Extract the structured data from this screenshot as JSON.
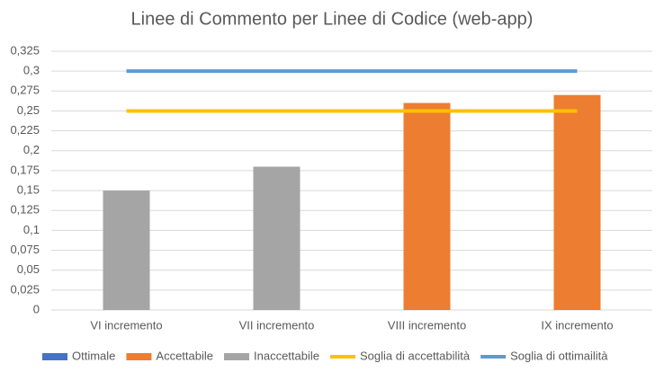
{
  "chart_data": {
    "type": "bar",
    "title": "Linee di Commento per Linee di Codice (web-app)",
    "categories": [
      "VI incremento",
      "VII incremento",
      "VIII incremento",
      "IX incremento"
    ],
    "series": [
      {
        "name": "Ottimale",
        "color": "#4472c4",
        "type": "bar",
        "values": [
          null,
          null,
          null,
          null
        ]
      },
      {
        "name": "Accettabile",
        "color": "#ed7d31",
        "type": "bar",
        "values": [
          null,
          null,
          0.26,
          0.27
        ]
      },
      {
        "name": "Inaccettabile",
        "color": "#a5a5a5",
        "type": "bar",
        "values": [
          0.15,
          0.18,
          null,
          null
        ]
      },
      {
        "name": "Soglia di accettabilità",
        "color": "#ffc000",
        "type": "line",
        "values": [
          0.25,
          0.25,
          0.25,
          0.25
        ]
      },
      {
        "name": "Soglia di ottimailità",
        "color": "#5b9bd5",
        "type": "line",
        "values": [
          0.3,
          0.3,
          0.3,
          0.3
        ]
      }
    ],
    "ylim": [
      0,
      0.325
    ],
    "yticks": [
      0,
      {
        "value": 0.025,
        "label": "0,025"
      },
      {
        "value": 0.05,
        "label": "0,05"
      },
      {
        "value": 0.075,
        "label": "0,075"
      },
      {
        "value": 0.1,
        "label": "0,1"
      },
      {
        "value": 0.125,
        "label": "0,125"
      },
      {
        "value": 0.15,
        "label": "0,15"
      },
      {
        "value": 0.175,
        "label": "0,175"
      },
      {
        "value": 0.2,
        "label": "0,2"
      },
      {
        "value": 0.225,
        "label": "0,225"
      },
      {
        "value": 0.25,
        "label": "0,25"
      },
      {
        "value": 0.275,
        "label": "0,275"
      },
      {
        "value": 0.3,
        "label": "0,3"
      },
      {
        "value": 0.325,
        "label": "0,325"
      }
    ],
    "grid": true,
    "legend": "bottom"
  }
}
